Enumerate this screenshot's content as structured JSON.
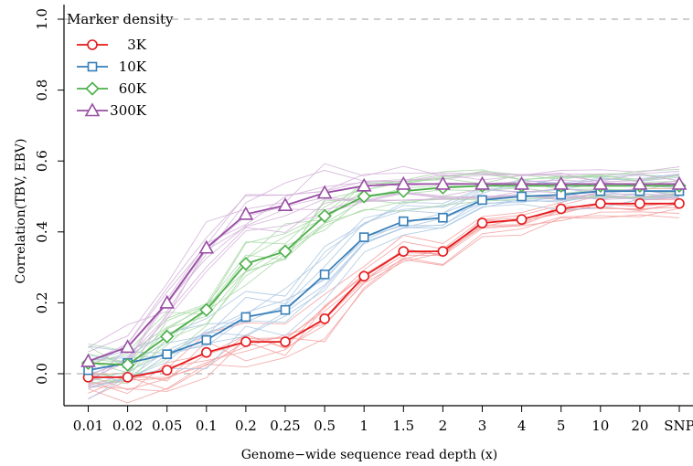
{
  "chart_data": {
    "type": "line",
    "xlabel": "Genome−wide sequence read depth (x)",
    "ylabel": "Correlation(TBV, EBV)",
    "categories": [
      "0.01",
      "0.02",
      "0.05",
      "0.1",
      "0.2",
      "0.25",
      "0.5",
      "1",
      "1.5",
      "2",
      "3",
      "4",
      "5",
      "10",
      "20",
      "SNP"
    ],
    "ylim": [
      -0.1,
      1.0
    ],
    "yticks": [
      "0.0",
      "0.2",
      "0.4",
      "0.6",
      "0.8",
      "1.0"
    ],
    "reference_lines": [
      0.0,
      1.0
    ],
    "legend": {
      "title": "Marker density",
      "placement": "top-left"
    },
    "series": [
      {
        "name": "3K",
        "color": "#e41a1c",
        "marker": "circle",
        "values": [
          -0.01,
          -0.01,
          0.01,
          0.06,
          0.09,
          0.09,
          0.155,
          0.275,
          0.345,
          0.345,
          0.425,
          0.435,
          0.465,
          0.48,
          0.48,
          0.48
        ]
      },
      {
        "name": "10K",
        "color": "#377eb8",
        "marker": "square",
        "values": [
          0.01,
          0.03,
          0.055,
          0.095,
          0.16,
          0.18,
          0.28,
          0.385,
          0.43,
          0.44,
          0.49,
          0.5,
          0.505,
          0.515,
          0.515,
          0.515
        ]
      },
      {
        "name": "60K",
        "color": "#4daf4a",
        "marker": "diamond",
        "values": [
          0.03,
          0.025,
          0.105,
          0.18,
          0.31,
          0.345,
          0.445,
          0.5,
          0.515,
          0.525,
          0.53,
          0.53,
          0.53,
          0.53,
          0.53,
          0.53
        ]
      },
      {
        "name": "300K",
        "color": "#984ea3",
        "marker": "triangle",
        "values": [
          0.035,
          0.075,
          0.2,
          0.355,
          0.45,
          0.475,
          0.51,
          0.53,
          0.535,
          0.535,
          0.535,
          0.535,
          0.535,
          0.535,
          0.535,
          0.535
        ]
      }
    ]
  }
}
